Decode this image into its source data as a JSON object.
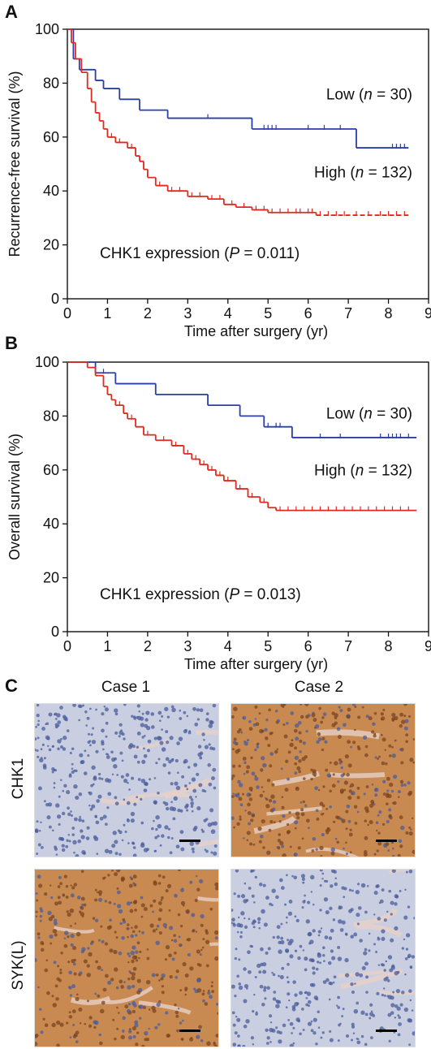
{
  "panels": {
    "A": {
      "letter": "A"
    },
    "B": {
      "letter": "B"
    },
    "C": {
      "letter": "C"
    }
  },
  "chart_data": [
    {
      "type": "line",
      "panel": "A",
      "xlabel": "Time after surgery (yr)",
      "ylabel": "Recurrence-free survival (%)",
      "xlim": [
        0,
        9
      ],
      "ylim": [
        0,
        100
      ],
      "xticks": [
        "0",
        "1",
        "2",
        "3",
        "4",
        "5",
        "6",
        "7",
        "8",
        "9"
      ],
      "yticks": [
        "0",
        "20",
        "40",
        "60",
        "80",
        "100"
      ],
      "annotation": {
        "prefix": "CHK1 expression (",
        "italic": "P",
        "suffix": " = 0.011)"
      },
      "series": [
        {
          "name": "Low",
          "label_prefix": "Low (",
          "label_italic": "n",
          "label_suffix": " = 30)",
          "color": "#2b3fa8",
          "dashed_tail_from": null,
          "steps": [
            [
              0,
              100
            ],
            [
              0.15,
              89
            ],
            [
              0.3,
              85
            ],
            [
              0.7,
              81
            ],
            [
              0.9,
              78
            ],
            [
              1.3,
              74
            ],
            [
              1.8,
              70
            ],
            [
              2.5,
              67
            ],
            [
              4.6,
              63
            ],
            [
              7.2,
              56
            ],
            [
              8.5,
              56
            ]
          ],
          "censor": [
            3.5,
            4.9,
            5.0,
            5.1,
            5.2,
            6.0,
            6.4,
            6.8,
            8.1,
            8.2,
            8.3,
            8.4
          ]
        },
        {
          "name": "High",
          "label_prefix": "High (",
          "label_italic": "n",
          "label_suffix": " = 132)",
          "color": "#e02a1e",
          "dashed_tail_from": 6.0,
          "steps": [
            [
              0,
              100
            ],
            [
              0.1,
              95
            ],
            [
              0.2,
              89
            ],
            [
              0.35,
              84
            ],
            [
              0.5,
              78
            ],
            [
              0.6,
              73
            ],
            [
              0.7,
              69
            ],
            [
              0.8,
              66
            ],
            [
              0.9,
              63
            ],
            [
              1.0,
              60
            ],
            [
              1.2,
              58
            ],
            [
              1.5,
              56
            ],
            [
              1.7,
              53
            ],
            [
              1.8,
              51
            ],
            [
              1.9,
              48
            ],
            [
              2.0,
              45
            ],
            [
              2.2,
              42
            ],
            [
              2.5,
              40
            ],
            [
              3.0,
              38
            ],
            [
              3.5,
              37
            ],
            [
              3.9,
              35
            ],
            [
              4.2,
              34
            ],
            [
              4.6,
              33
            ],
            [
              5.0,
              32
            ],
            [
              6.2,
              31
            ],
            [
              8.5,
              31
            ]
          ],
          "censor": [
            1.1,
            1.3,
            1.6,
            2.3,
            2.6,
            2.8,
            3.1,
            3.3,
            3.6,
            3.8,
            4.1,
            4.4,
            4.7,
            4.9,
            5.1,
            5.3,
            5.5,
            5.7,
            5.8,
            6.0,
            6.1,
            6.3,
            6.5,
            6.7,
            6.9,
            7.2,
            7.5,
            7.8,
            8.0,
            8.2,
            8.4
          ]
        }
      ]
    },
    {
      "type": "line",
      "panel": "B",
      "xlabel": "Time after surgery (yr)",
      "ylabel": "Overall survival (%)",
      "xlim": [
        0,
        9
      ],
      "ylim": [
        0,
        100
      ],
      "xticks": [
        "0",
        "1",
        "2",
        "3",
        "4",
        "5",
        "6",
        "7",
        "8",
        "9"
      ],
      "yticks": [
        "0",
        "20",
        "40",
        "60",
        "80",
        "100"
      ],
      "annotation": {
        "prefix": "CHK1 expression (",
        "italic": "P",
        "suffix": " = 0.013)"
      },
      "series": [
        {
          "name": "Low",
          "label_prefix": "Low (",
          "label_italic": "n",
          "label_suffix": " = 30)",
          "color": "#2b3fa8",
          "dashed_tail_from": null,
          "steps": [
            [
              0,
              100
            ],
            [
              0.7,
              96
            ],
            [
              1.2,
              92
            ],
            [
              2.2,
              88
            ],
            [
              3.5,
              84
            ],
            [
              4.3,
              80
            ],
            [
              4.9,
              76
            ],
            [
              5.6,
              72
            ],
            [
              8.7,
              72
            ]
          ],
          "censor": [
            0.9,
            5.0,
            5.2,
            5.3,
            6.3,
            6.8,
            7.8,
            8.0,
            8.1,
            8.2,
            8.3,
            8.5
          ]
        },
        {
          "name": "High",
          "label_prefix": "High (",
          "label_italic": "n",
          "label_suffix": " = 132)",
          "color": "#e02a1e",
          "dashed_tail_from": 5.9,
          "steps": [
            [
              0,
              100
            ],
            [
              0.5,
              98
            ],
            [
              0.7,
              95
            ],
            [
              0.9,
              91
            ],
            [
              1.0,
              88
            ],
            [
              1.1,
              86
            ],
            [
              1.2,
              84
            ],
            [
              1.4,
              81
            ],
            [
              1.5,
              79
            ],
            [
              1.7,
              76
            ],
            [
              1.9,
              73
            ],
            [
              2.2,
              71
            ],
            [
              2.6,
              69
            ],
            [
              2.9,
              66
            ],
            [
              3.1,
              64
            ],
            [
              3.3,
              62
            ],
            [
              3.5,
              60
            ],
            [
              3.7,
              58
            ],
            [
              3.9,
              56
            ],
            [
              4.2,
              53
            ],
            [
              4.5,
              50
            ],
            [
              4.8,
              48
            ],
            [
              5.0,
              46
            ],
            [
              5.2,
              45
            ],
            [
              8.7,
              45
            ]
          ],
          "censor": [
            1.3,
            1.6,
            2.0,
            2.4,
            2.7,
            3.0,
            3.2,
            3.4,
            3.6,
            3.8,
            4.0,
            4.3,
            4.6,
            4.9,
            5.3,
            5.5,
            5.7,
            5.9,
            6.1,
            6.3,
            6.5,
            6.7,
            6.9,
            7.1,
            7.3,
            7.5,
            7.7,
            7.9,
            8.1,
            8.3,
            8.5
          ]
        }
      ]
    }
  ],
  "histology": {
    "columns": [
      "Case 1",
      "Case 2"
    ],
    "rows": [
      "CHK1",
      "SYK(L)"
    ],
    "colors": {
      "weak_bg": "#c9cfe0",
      "weak_nuclei": "#4a5c9c",
      "strong_bg": "#c98a52",
      "strong_nuclei": "#7a4420",
      "stroma": "#e7cfc5"
    },
    "images": [
      {
        "name": "chk1-case1",
        "stain": "weak"
      },
      {
        "name": "chk1-case2",
        "stain": "strong"
      },
      {
        "name": "sykl-case1",
        "stain": "strong"
      },
      {
        "name": "sykl-case2",
        "stain": "weak"
      }
    ]
  }
}
